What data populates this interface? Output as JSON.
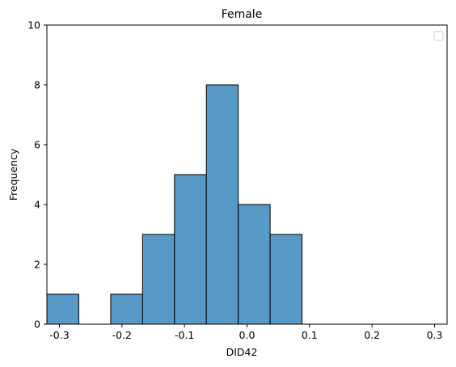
{
  "chart_data": {
    "type": "bar",
    "title": "Female",
    "xlabel": "DID42",
    "ylabel": "Frequency",
    "xlim": [
      -0.32,
      0.32
    ],
    "ylim": [
      0,
      10
    ],
    "xticks": [
      "-0.3",
      "-0.2",
      "-0.1",
      "0.0",
      "0.1",
      "0.2",
      "0.3"
    ],
    "yticks": [
      "0",
      "2",
      "4",
      "6",
      "8",
      "10"
    ],
    "bins": [
      {
        "x0": -0.32,
        "x1": -0.269,
        "count": 1
      },
      {
        "x0": -0.269,
        "x1": -0.218,
        "count": 0
      },
      {
        "x0": -0.218,
        "x1": -0.167,
        "count": 1
      },
      {
        "x0": -0.167,
        "x1": -0.116,
        "count": 3
      },
      {
        "x0": -0.116,
        "x1": -0.065,
        "count": 5
      },
      {
        "x0": -0.065,
        "x1": -0.014,
        "count": 8
      },
      {
        "x0": -0.014,
        "x1": 0.037,
        "count": 4
      },
      {
        "x0": 0.037,
        "x1": 0.088,
        "count": 3
      }
    ],
    "bar_color": "#5799c7",
    "edge_color": "#000000",
    "legend": "top-right (empty)",
    "grid": false
  }
}
